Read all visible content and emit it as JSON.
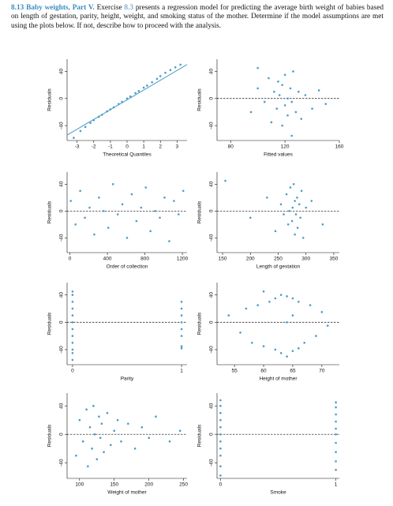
{
  "exercise": {
    "number": "8.13",
    "title": "Baby weights, Part V.",
    "lead": "Exercise",
    "ref": "8.3",
    "text": "presents a regression model for predicting the average birth weight of babies based on length of gestation, parity, height, weight, and smoking status of the mother. Determine if the model assumptions are met using the plots below. If not, describe how to proceed with the analysis."
  },
  "chart_data": [
    {
      "type": "qq",
      "xlabel": "Theoretical Quantiles",
      "ylabel": "Residuals",
      "color": "#4a9cc7",
      "xlim": [
        -3.6,
        3.6
      ],
      "ylim": [
        -62,
        58
      ],
      "xticks": [
        -3,
        -2,
        -1,
        0,
        1,
        2,
        3
      ],
      "yticks": [
        -40,
        0,
        40
      ],
      "x": [
        -3.2,
        -2.8,
        -2.5,
        -2.2,
        -2,
        -1.7,
        -1.5,
        -1.2,
        -1,
        -0.8,
        -0.5,
        -0.3,
        0,
        0.2,
        0.5,
        0.7,
        1,
        1.2,
        1.5,
        1.8,
        2,
        2.3,
        2.6,
        2.9,
        3.2
      ],
      "y": [
        -58,
        -48,
        -42,
        -36,
        -32,
        -27,
        -24,
        -19,
        -16,
        -13,
        -8,
        -5,
        0,
        3,
        8,
        11,
        16,
        19,
        24,
        29,
        33,
        38,
        42,
        46,
        50
      ],
      "reference_line": {
        "x": [
          -3.6,
          3.6
        ],
        "y": [
          -54,
          50
        ]
      }
    },
    {
      "type": "scatter",
      "xlabel": "Fitted values",
      "ylabel": "Residuals",
      "color": "#4a9cc7",
      "xlim": [
        70,
        160
      ],
      "ylim": [
        -62,
        58
      ],
      "xticks": [
        80,
        120,
        160
      ],
      "yticks": [
        -40,
        0,
        40
      ],
      "hline": 0,
      "x": [
        95,
        100,
        105,
        108,
        110,
        112,
        114,
        115,
        116,
        118,
        118,
        120,
        120,
        122,
        122,
        124,
        125,
        126,
        128,
        130,
        132,
        135,
        140,
        145,
        150,
        100,
        125
      ],
      "y": [
        -20,
        15,
        -5,
        30,
        -35,
        10,
        -15,
        25,
        5,
        -40,
        20,
        -10,
        35,
        0,
        -25,
        15,
        -5,
        40,
        -20,
        10,
        -30,
        5,
        -15,
        12,
        -8,
        45,
        -55
      ]
    },
    {
      "type": "scatter",
      "xlabel": "Order of collection",
      "ylabel": "Residuals",
      "color": "#4a9cc7",
      "xlim": [
        -30,
        1250
      ],
      "ylim": [
        -62,
        58
      ],
      "xticks": [
        0,
        400,
        800,
        1200
      ],
      "yticks": [
        -40,
        0,
        40
      ],
      "hline": 0,
      "x": [
        10,
        60,
        110,
        160,
        210,
        260,
        310,
        360,
        410,
        460,
        510,
        560,
        610,
        660,
        710,
        760,
        810,
        860,
        910,
        960,
        1010,
        1060,
        1110,
        1160,
        1210
      ],
      "y": [
        15,
        -20,
        30,
        -10,
        5,
        -35,
        20,
        0,
        -25,
        40,
        -5,
        10,
        -40,
        25,
        -15,
        5,
        35,
        -30,
        0,
        -10,
        20,
        -45,
        15,
        -5,
        30
      ]
    },
    {
      "type": "scatter",
      "xlabel": "Length of gestation",
      "ylabel": "Residuals",
      "color": "#4a9cc7",
      "xlim": [
        140,
        360
      ],
      "ylim": [
        -62,
        58
      ],
      "xticks": [
        150,
        200,
        250,
        300,
        350
      ],
      "yticks": [
        -40,
        0,
        40
      ],
      "hline": 0,
      "x": [
        155,
        200,
        230,
        245,
        255,
        260,
        265,
        268,
        270,
        272,
        275,
        276,
        278,
        280,
        280,
        282,
        284,
        285,
        288,
        290,
        292,
        295,
        300,
        310,
        330
      ],
      "y": [
        45,
        -10,
        20,
        -30,
        10,
        -5,
        25,
        -20,
        0,
        35,
        -15,
        5,
        40,
        -35,
        15,
        -5,
        20,
        -25,
        10,
        -10,
        30,
        -40,
        5,
        15,
        -20
      ]
    },
    {
      "type": "scatter",
      "xlabel": "Parity",
      "ylabel": "Residuals",
      "color": "#4a9cc7",
      "xlim": [
        -0.05,
        1.05
      ],
      "ylim": [
        -62,
        58
      ],
      "xticks": [
        0,
        1
      ],
      "yticks": [
        -40,
        0,
        40
      ],
      "hline": 0,
      "x": [
        0,
        0,
        0,
        0,
        0,
        0,
        0,
        0,
        0,
        0,
        0,
        0,
        1,
        1,
        1,
        1,
        1,
        1,
        1,
        1
      ],
      "y": [
        -55,
        -40,
        -30,
        -20,
        -10,
        0,
        10,
        20,
        30,
        40,
        45,
        -45,
        -35,
        -20,
        -10,
        0,
        10,
        20,
        30,
        -38
      ]
    },
    {
      "type": "scatter",
      "xlabel": "Height of mother",
      "ylabel": "Residuals",
      "color": "#4a9cc7",
      "xlim": [
        52,
        73
      ],
      "ylim": [
        -62,
        58
      ],
      "xticks": [
        55,
        60,
        65,
        70
      ],
      "yticks": [
        -40,
        0,
        40
      ],
      "hline": 0,
      "x": [
        54,
        56,
        57,
        58,
        59,
        60,
        61,
        62,
        62,
        63,
        63,
        64,
        64,
        65,
        65,
        66,
        66,
        67,
        68,
        69,
        70,
        71,
        60,
        64,
        65
      ],
      "y": [
        10,
        -15,
        20,
        -30,
        25,
        -35,
        30,
        -40,
        35,
        -45,
        40,
        -50,
        38,
        -42,
        35,
        -38,
        30,
        -30,
        25,
        -20,
        15,
        -5,
        45,
        0,
        10
      ]
    },
    {
      "type": "scatter",
      "xlabel": "Weight of mother",
      "ylabel": "Residuals",
      "color": "#4a9cc7",
      "xlim": [
        82,
        255
      ],
      "ylim": [
        -62,
        58
      ],
      "xticks": [
        100,
        150,
        200,
        250
      ],
      "yticks": [
        -40,
        0,
        40
      ],
      "hline": 0,
      "x": [
        95,
        100,
        105,
        110,
        112,
        115,
        118,
        120,
        122,
        125,
        128,
        130,
        132,
        135,
        140,
        145,
        150,
        155,
        160,
        170,
        180,
        190,
        200,
        210,
        230,
        245
      ],
      "y": [
        -30,
        20,
        -10,
        35,
        -45,
        10,
        -20,
        40,
        0,
        -35,
        25,
        -5,
        15,
        -25,
        30,
        -15,
        5,
        20,
        -10,
        15,
        -20,
        10,
        -5,
        25,
        -10,
        5
      ]
    },
    {
      "type": "scatter",
      "xlabel": "Smoke",
      "ylabel": "Residuals",
      "color": "#4a9cc7",
      "xlim": [
        -0.03,
        1.03
      ],
      "ylim": [
        -62,
        58
      ],
      "xticks": [
        0,
        1
      ],
      "yticks": [
        -40,
        0,
        40
      ],
      "hline": 0,
      "x": [
        0,
        0,
        0,
        0,
        0,
        0,
        0,
        0,
        0,
        0,
        0,
        1,
        1,
        1,
        1,
        1,
        1,
        1,
        1,
        1,
        1
      ],
      "y": [
        -58,
        -45,
        -30,
        -20,
        -10,
        0,
        10,
        20,
        30,
        40,
        48,
        -50,
        -38,
        -25,
        -12,
        0,
        8,
        18,
        28,
        38,
        45
      ]
    }
  ]
}
